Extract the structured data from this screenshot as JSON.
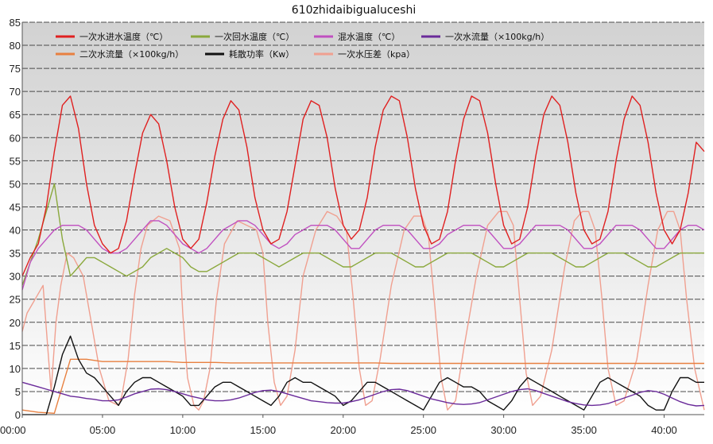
{
  "chart_data": {
    "type": "line",
    "title": "610zhidaibigualuceshi",
    "x_ticks": [
      "00:00",
      "05:00",
      "10:00",
      "15:00",
      "20:00",
      "25:00",
      "30:00",
      "35:00",
      "40:00"
    ],
    "xlim_minutes": [
      0,
      42.5
    ],
    "ylim": [
      0,
      85
    ],
    "y_ticks": [
      0,
      5,
      10,
      15,
      20,
      25,
      30,
      35,
      40,
      45,
      50,
      55,
      60,
      65,
      70,
      75,
      80,
      85
    ],
    "grid": true,
    "legend_placement": "top",
    "series": [
      {
        "name": "一次水进水温度（℃）",
        "color": "#e02020",
        "x": [
          0,
          0.5,
          1,
          1.5,
          2,
          2.5,
          3,
          3.5,
          4,
          4.5,
          5,
          5.5,
          6,
          6.5,
          7,
          7.5,
          8,
          8.5,
          9,
          9.5,
          10,
          10.5,
          11,
          11.5,
          12,
          12.5,
          13,
          13.5,
          14,
          14.5,
          15,
          15.5,
          16,
          16.5,
          17,
          17.5,
          18,
          18.5,
          19,
          19.5,
          20,
          20.5,
          21,
          21.5,
          22,
          22.5,
          23,
          23.5,
          24,
          24.5,
          25,
          25.5,
          26,
          26.5,
          27,
          27.5,
          28,
          28.5,
          29,
          29.5,
          30,
          30.5,
          31,
          31.5,
          32,
          32.5,
          33,
          33.5,
          34,
          34.5,
          35,
          35.5,
          36,
          36.5,
          37,
          37.5,
          38,
          38.5,
          39,
          39.5,
          40,
          40.5,
          41,
          41.5,
          42,
          42.5
        ],
        "values": [
          30,
          34,
          37,
          45,
          57,
          67,
          69,
          62,
          50,
          41,
          37,
          35,
          36,
          42,
          52,
          61,
          65,
          63,
          55,
          45,
          38,
          36,
          38,
          46,
          56,
          64,
          68,
          66,
          58,
          47,
          40,
          37,
          38,
          44,
          54,
          64,
          68,
          67,
          60,
          49,
          41,
          38,
          40,
          47,
          58,
          66,
          69,
          68,
          60,
          49,
          41,
          37,
          38,
          44,
          55,
          64,
          69,
          68,
          61,
          50,
          41,
          37,
          38,
          45,
          56,
          65,
          69,
          67,
          59,
          48,
          40,
          37,
          38,
          44,
          55,
          64,
          69,
          67,
          59,
          48,
          40,
          37,
          40,
          48,
          59,
          57
        ]
      },
      {
        "name": "一次回水温度（℃）",
        "color": "#8aa83c",
        "x": [
          0,
          0.5,
          1,
          1.5,
          2,
          2.5,
          3,
          3.5,
          4,
          4.5,
          5,
          5.5,
          6,
          6.5,
          7,
          7.5,
          8,
          8.5,
          9,
          9.5,
          10,
          10.5,
          11,
          11.5,
          12,
          12.5,
          13,
          13.5,
          14,
          14.5,
          15,
          15.5,
          16,
          16.5,
          17,
          17.5,
          18,
          18.5,
          19,
          19.5,
          20,
          20.5,
          21,
          21.5,
          22,
          22.5,
          23,
          23.5,
          24,
          24.5,
          25,
          25.5,
          26,
          26.5,
          27,
          27.5,
          28,
          28.5,
          29,
          29.5,
          30,
          30.5,
          31,
          31.5,
          32,
          32.5,
          33,
          33.5,
          34,
          34.5,
          35,
          35.5,
          36,
          36.5,
          37,
          37.5,
          38,
          38.5,
          39,
          39.5,
          40,
          40.5,
          41,
          41.5,
          42,
          42.5
        ],
        "values": [
          28,
          33,
          38,
          44,
          50,
          38,
          30,
          32,
          34,
          34,
          33,
          32,
          31,
          30,
          31,
          32,
          34,
          35,
          36,
          35,
          34,
          32,
          31,
          31,
          32,
          33,
          34,
          35,
          35,
          35,
          34,
          33,
          32,
          33,
          34,
          35,
          35,
          35,
          34,
          33,
          32,
          32,
          33,
          34,
          35,
          35,
          35,
          34,
          33,
          32,
          32,
          33,
          34,
          35,
          35,
          35,
          35,
          34,
          33,
          32,
          32,
          33,
          34,
          35,
          35,
          35,
          35,
          34,
          33,
          32,
          32,
          33,
          34,
          35,
          35,
          35,
          34,
          33,
          32,
          32,
          33,
          34,
          35,
          35,
          35,
          35
        ]
      },
      {
        "name": "混水温度（℃）",
        "color": "#c050c0",
        "x": [
          0,
          0.5,
          1,
          1.5,
          2,
          2.5,
          3,
          3.5,
          4,
          4.5,
          5,
          5.5,
          6,
          6.5,
          7,
          7.5,
          8,
          8.5,
          9,
          9.5,
          10,
          10.5,
          11,
          11.5,
          12,
          12.5,
          13,
          13.5,
          14,
          14.5,
          15,
          15.5,
          16,
          16.5,
          17,
          17.5,
          18,
          18.5,
          19,
          19.5,
          20,
          20.5,
          21,
          21.5,
          22,
          22.5,
          23,
          23.5,
          24,
          24.5,
          25,
          25.5,
          26,
          26.5,
          27,
          27.5,
          28,
          28.5,
          29,
          29.5,
          30,
          30.5,
          31,
          31.5,
          32,
          32.5,
          33,
          33.5,
          34,
          34.5,
          35,
          35.5,
          36,
          36.5,
          37,
          37.5,
          38,
          38.5,
          39,
          39.5,
          40,
          40.5,
          41,
          41.5,
          42,
          42.5
        ],
        "values": [
          27,
          33,
          36,
          38,
          40,
          41,
          41,
          41,
          40,
          38,
          36,
          35,
          35,
          36,
          38,
          40,
          42,
          42,
          41,
          39,
          37,
          36,
          35,
          36,
          38,
          40,
          41,
          42,
          42,
          41,
          39,
          37,
          36,
          37,
          39,
          40,
          41,
          41,
          41,
          40,
          38,
          36,
          36,
          38,
          40,
          41,
          41,
          41,
          40,
          38,
          36,
          36,
          37,
          39,
          40,
          41,
          41,
          41,
          40,
          38,
          36,
          36,
          37,
          39,
          41,
          41,
          41,
          41,
          40,
          38,
          36,
          36,
          37,
          39,
          41,
          41,
          41,
          40,
          38,
          36,
          36,
          38,
          40,
          41,
          41,
          40
        ]
      },
      {
        "name": "一次水流量（×100kg/h）",
        "color": "#6a2a9a",
        "x": [
          0,
          0.5,
          1,
          1.5,
          2,
          2.5,
          3,
          3.5,
          4,
          4.5,
          5,
          5.5,
          6,
          6.5,
          7,
          7.5,
          8,
          8.5,
          9,
          9.5,
          10,
          10.5,
          11,
          11.5,
          12,
          12.5,
          13,
          13.5,
          14,
          14.5,
          15,
          15.5,
          16,
          16.5,
          17,
          17.5,
          18,
          18.5,
          19,
          19.5,
          20,
          20.5,
          21,
          21.5,
          22,
          22.5,
          23,
          23.5,
          24,
          24.5,
          25,
          25.5,
          26,
          26.5,
          27,
          27.5,
          28,
          28.5,
          29,
          29.5,
          30,
          30.5,
          31,
          31.5,
          32,
          32.5,
          33,
          33.5,
          34,
          34.5,
          35,
          35.5,
          36,
          36.5,
          37,
          37.5,
          38,
          38.5,
          39,
          39.5,
          40,
          40.5,
          41,
          41.5,
          42,
          42.5
        ],
        "values": [
          7,
          6.5,
          6,
          5.5,
          5,
          4.5,
          4,
          3.8,
          3.5,
          3.3,
          3,
          3,
          3.2,
          3.8,
          4.5,
          5,
          5.5,
          5.6,
          5.4,
          5,
          4.5,
          4,
          3.6,
          3.2,
          3,
          3,
          3.2,
          3.6,
          4.2,
          4.8,
          5.2,
          5.3,
          5,
          4.5,
          4,
          3.5,
          3,
          2.8,
          2.6,
          2.5,
          2.5,
          2.8,
          3.2,
          3.8,
          4.4,
          5,
          5.4,
          5.5,
          5.2,
          4.6,
          4,
          3.4,
          3,
          2.6,
          2.3,
          2.2,
          2.3,
          2.6,
          3.2,
          3.8,
          4.4,
          5,
          5.4,
          5.6,
          5.2,
          4.6,
          4,
          3.4,
          2.8,
          2.4,
          2.1,
          2,
          2.1,
          2.4,
          3,
          3.6,
          4.2,
          4.8,
          5.2,
          5,
          4.4,
          3.6,
          2.8,
          2.2,
          1.9,
          2
        ]
      },
      {
        "name": "二次水流量（×100kg/h）",
        "color": "#e88040",
        "x": [
          0,
          1,
          2,
          3,
          4,
          5,
          6,
          7,
          8,
          9,
          10,
          11,
          12,
          13,
          14,
          15,
          16,
          17,
          18,
          19,
          20,
          21,
          22,
          23,
          24,
          25,
          26,
          27,
          28,
          29,
          30,
          31,
          32,
          33,
          34,
          35,
          36,
          37,
          38,
          39,
          40,
          41,
          42,
          42.5
        ],
        "values": [
          1,
          0.5,
          0.3,
          12,
          12,
          11.5,
          11.5,
          11.5,
          11.5,
          11.5,
          11.3,
          11.3,
          11.3,
          11.2,
          11.2,
          11.2,
          11.2,
          11.2,
          11.2,
          11.2,
          11.2,
          11.2,
          11.2,
          11.1,
          11.1,
          11.1,
          11.1,
          11.1,
          11.1,
          11.1,
          11.1,
          11.1,
          11.1,
          11.1,
          11.1,
          11.1,
          11.1,
          11.1,
          11.1,
          11.1,
          11.1,
          11.1,
          11.1,
          11.1
        ]
      },
      {
        "name": "耗散功率（Kw）",
        "color": "#111111",
        "x": [
          0,
          0.5,
          1,
          1.5,
          2,
          2.5,
          3,
          3.5,
          4,
          4.5,
          5,
          5.5,
          6,
          6.5,
          7,
          7.5,
          8,
          8.5,
          9,
          9.5,
          10,
          10.5,
          11,
          11.5,
          12,
          12.5,
          13,
          13.5,
          14,
          14.5,
          15,
          15.5,
          16,
          16.5,
          17,
          17.5,
          18,
          18.5,
          19,
          19.5,
          20,
          20.5,
          21,
          21.5,
          22,
          22.5,
          23,
          23.5,
          24,
          24.5,
          25,
          25.5,
          26,
          26.5,
          27,
          27.5,
          28,
          28.5,
          29,
          29.5,
          30,
          30.5,
          31,
          31.5,
          32,
          32.5,
          33,
          33.5,
          34,
          34.5,
          35,
          35.5,
          36,
          36.5,
          37,
          37.5,
          38,
          38.5,
          39,
          39.5,
          40,
          40.5,
          41,
          41.5,
          42,
          42.5
        ],
        "values": [
          0,
          0,
          0,
          0,
          6,
          13,
          17,
          12,
          9,
          8,
          6,
          4,
          2,
          5,
          7,
          8,
          8,
          7,
          6,
          5,
          4,
          2,
          2,
          4,
          6,
          7,
          7,
          6,
          5,
          4,
          3,
          2,
          4,
          7,
          8,
          7,
          7,
          6,
          5,
          4,
          2,
          3,
          5,
          7,
          7,
          6,
          5,
          4,
          3,
          2,
          1,
          4,
          7,
          8,
          7,
          6,
          6,
          5,
          3,
          2,
          1,
          3,
          6,
          8,
          7,
          6,
          5,
          4,
          3,
          2,
          1,
          4,
          7,
          8,
          7,
          6,
          5,
          4,
          2,
          1,
          1,
          5,
          8,
          8,
          7,
          7
        ]
      },
      {
        "name": "一次水压差（kpa）",
        "color": "#f0a090",
        "x": [
          0,
          0.3,
          0.8,
          1.3,
          1.6,
          1.8,
          2.1,
          2.4,
          2.8,
          3.2,
          3.8,
          4.2,
          4.8,
          5.4,
          6,
          6.2,
          6.6,
          7,
          7.4,
          7.8,
          8.5,
          9.2,
          9.8,
          10,
          10.3,
          10.7,
          11,
          11.3,
          11.7,
          12.1,
          12.6,
          13.4,
          14,
          14.6,
          15,
          15.3,
          15.7,
          16.1,
          16.5,
          17,
          17.5,
          18.3,
          19,
          19.6,
          20.2,
          20.6,
          21,
          21.4,
          21.8,
          22.3,
          23,
          23.8,
          24.4,
          24.9,
          25.3,
          25.7,
          26.1,
          26.5,
          27,
          27.5,
          28.3,
          29,
          29.7,
          30.2,
          30.6,
          31,
          31.4,
          31.8,
          32.3,
          33,
          33.8,
          34.4,
          34.9,
          35.3,
          35.7,
          36.1,
          36.5,
          37,
          37.5,
          38.3,
          39,
          39.6,
          40.2,
          40.6,
          41,
          41.4,
          41.9,
          42.5
        ],
        "values": [
          18,
          22,
          25,
          28,
          14,
          5,
          20,
          28,
          35,
          34,
          30,
          22,
          10,
          3,
          2,
          4,
          12,
          26,
          36,
          41,
          43,
          42,
          36,
          22,
          8,
          2,
          1,
          3,
          10,
          25,
          37,
          42,
          41,
          40,
          35,
          20,
          7,
          2,
          4,
          14,
          30,
          40,
          44,
          43,
          40,
          26,
          10,
          2,
          3,
          12,
          28,
          40,
          43,
          43,
          39,
          24,
          8,
          1,
          3,
          14,
          30,
          41,
          44,
          44,
          41,
          25,
          9,
          2,
          4,
          14,
          32,
          42,
          44,
          44,
          40,
          26,
          10,
          2,
          3,
          12,
          28,
          40,
          44,
          44,
          40,
          25,
          10,
          1
        ]
      }
    ]
  }
}
